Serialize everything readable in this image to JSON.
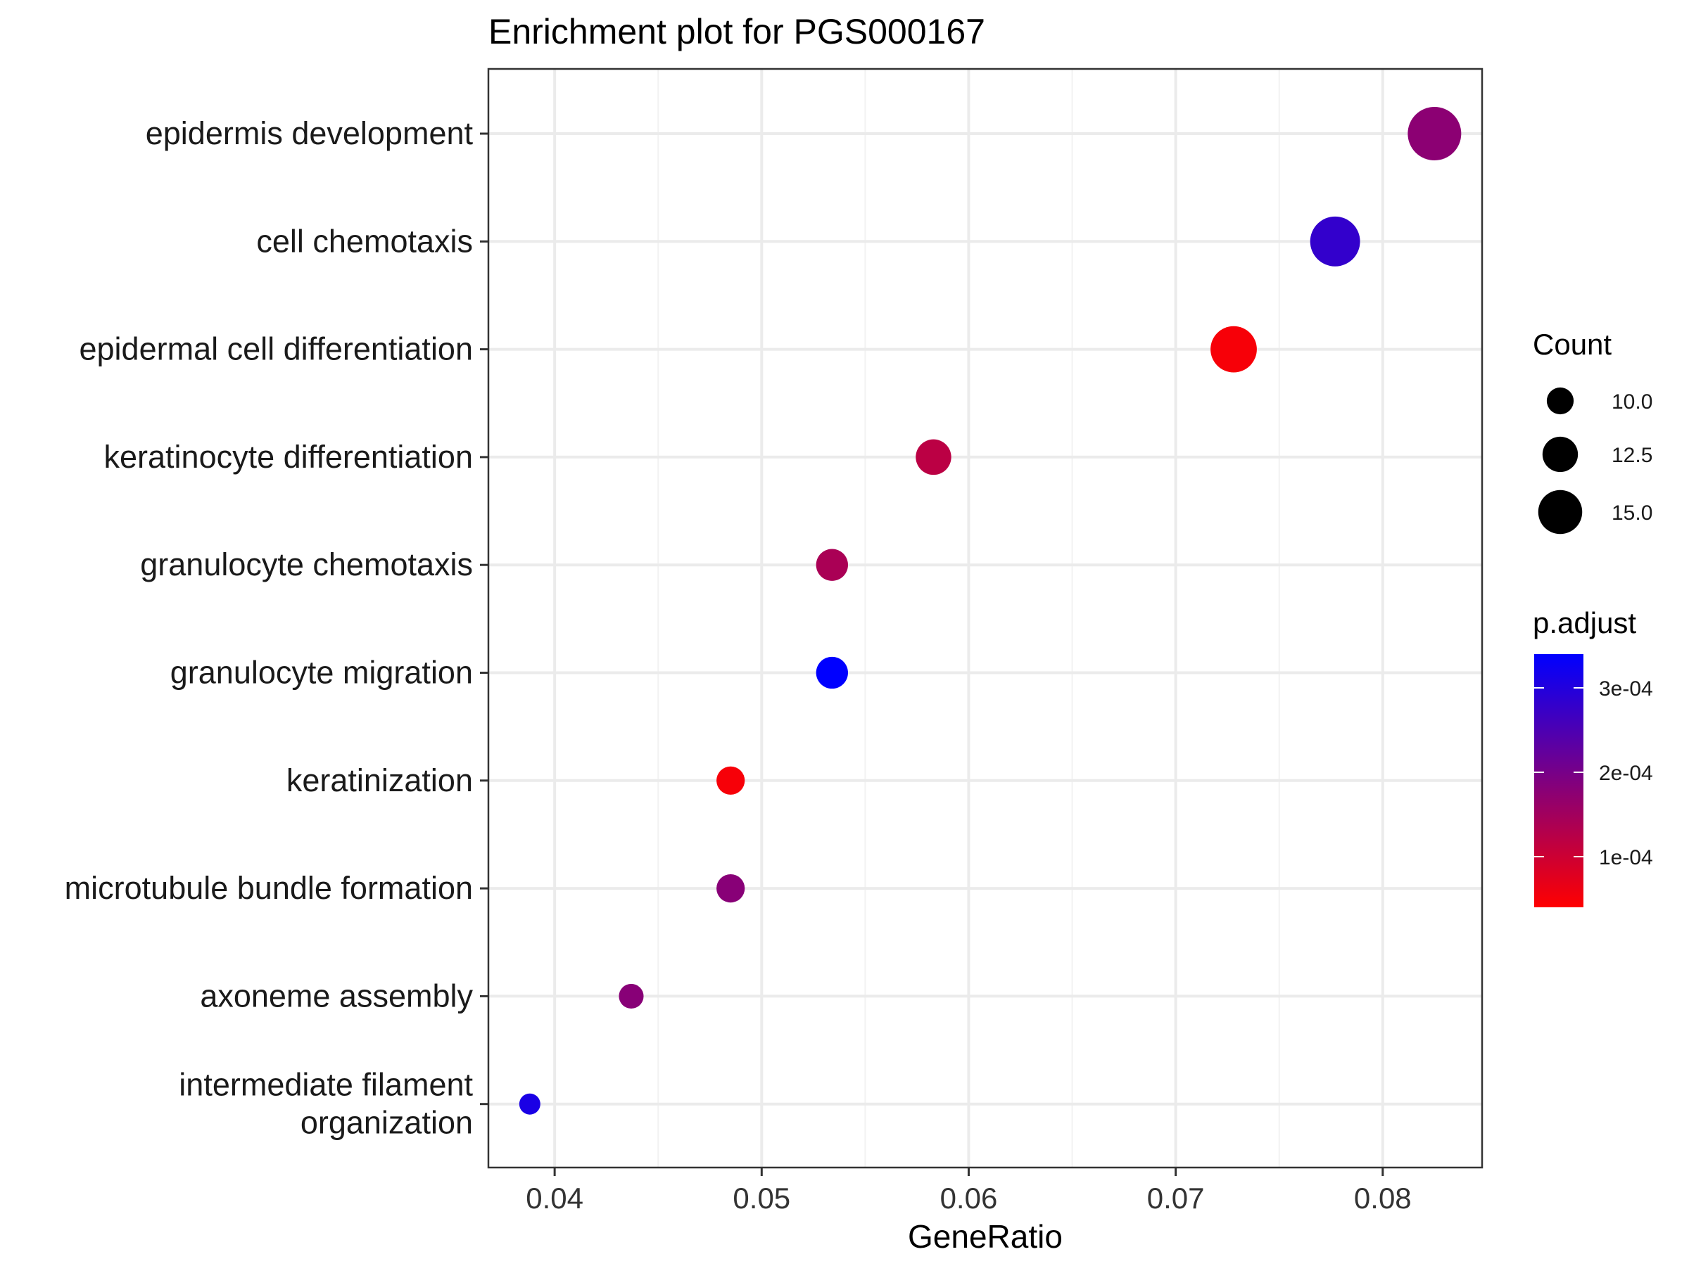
{
  "chart_data": {
    "type": "scatter",
    "title": "Enrichment plot for PGS000167",
    "xlabel": "GeneRatio",
    "ylabel": "",
    "xlim": [
      0.0368,
      0.0848
    ],
    "xticks": [
      "0.04",
      "0.05",
      "0.06",
      "0.07",
      "0.08"
    ],
    "xtick_values": [
      0.04,
      0.05,
      0.06,
      0.07,
      0.08
    ],
    "grid": true,
    "categories": [
      "epidermis development",
      "cell chemotaxis",
      "epidermal cell differentiation",
      "keratinocyte differentiation",
      "granulocyte chemotaxis",
      "granulocyte migration",
      "keratinization",
      "microtubule bundle formation",
      "axoneme assembly",
      "intermediate filament organization"
    ],
    "category_lines": [
      [
        "epidermis development"
      ],
      [
        "cell chemotaxis"
      ],
      [
        "epidermal cell differentiation"
      ],
      [
        "keratinocyte differentiation"
      ],
      [
        "granulocyte chemotaxis"
      ],
      [
        "granulocyte migration"
      ],
      [
        "keratinization"
      ],
      [
        "microtubule bundle formation"
      ],
      [
        "axoneme assembly"
      ],
      [
        "intermediate filament",
        "organization"
      ]
    ],
    "points": [
      {
        "term": "epidermis development",
        "gene_ratio": 0.0825,
        "count": 17,
        "p_adjust": 0.000175
      },
      {
        "term": "cell chemotaxis",
        "gene_ratio": 0.0777,
        "count": 16,
        "p_adjust": 0.00028
      },
      {
        "term": "epidermal cell differentiation",
        "gene_ratio": 0.0728,
        "count": 15,
        "p_adjust": 5e-05
      },
      {
        "term": "keratinocyte differentiation",
        "gene_ratio": 0.0583,
        "count": 12,
        "p_adjust": 0.00012
      },
      {
        "term": "granulocyte chemotaxis",
        "gene_ratio": 0.0534,
        "count": 11,
        "p_adjust": 0.00014
      },
      {
        "term": "granulocyte migration",
        "gene_ratio": 0.0534,
        "count": 11,
        "p_adjust": 0.00034
      },
      {
        "term": "keratinization",
        "gene_ratio": 0.0485,
        "count": 10,
        "p_adjust": 5e-05
      },
      {
        "term": "microtubule bundle formation",
        "gene_ratio": 0.0485,
        "count": 10,
        "p_adjust": 0.00018
      },
      {
        "term": "axoneme assembly",
        "gene_ratio": 0.0437,
        "count": 9,
        "p_adjust": 0.00018
      },
      {
        "term": "intermediate filament organization",
        "gene_ratio": 0.0388,
        "count": 8,
        "p_adjust": 0.00031
      }
    ],
    "size_legend": {
      "title": "Count",
      "entries": [
        {
          "label": "10.0",
          "value": 10
        },
        {
          "label": "12.5",
          "value": 12.5
        },
        {
          "label": "15.0",
          "value": 15
        }
      ]
    },
    "color_legend": {
      "title": "p.adjust",
      "low_color": "#ff0000",
      "high_color": "#0000ff",
      "range": [
        4e-05,
        0.00034
      ],
      "ticks": [
        {
          "label": "3e-04",
          "value": 0.0003
        },
        {
          "label": "2e-04",
          "value": 0.0002
        },
        {
          "label": "1e-04",
          "value": 0.0001
        }
      ]
    }
  }
}
